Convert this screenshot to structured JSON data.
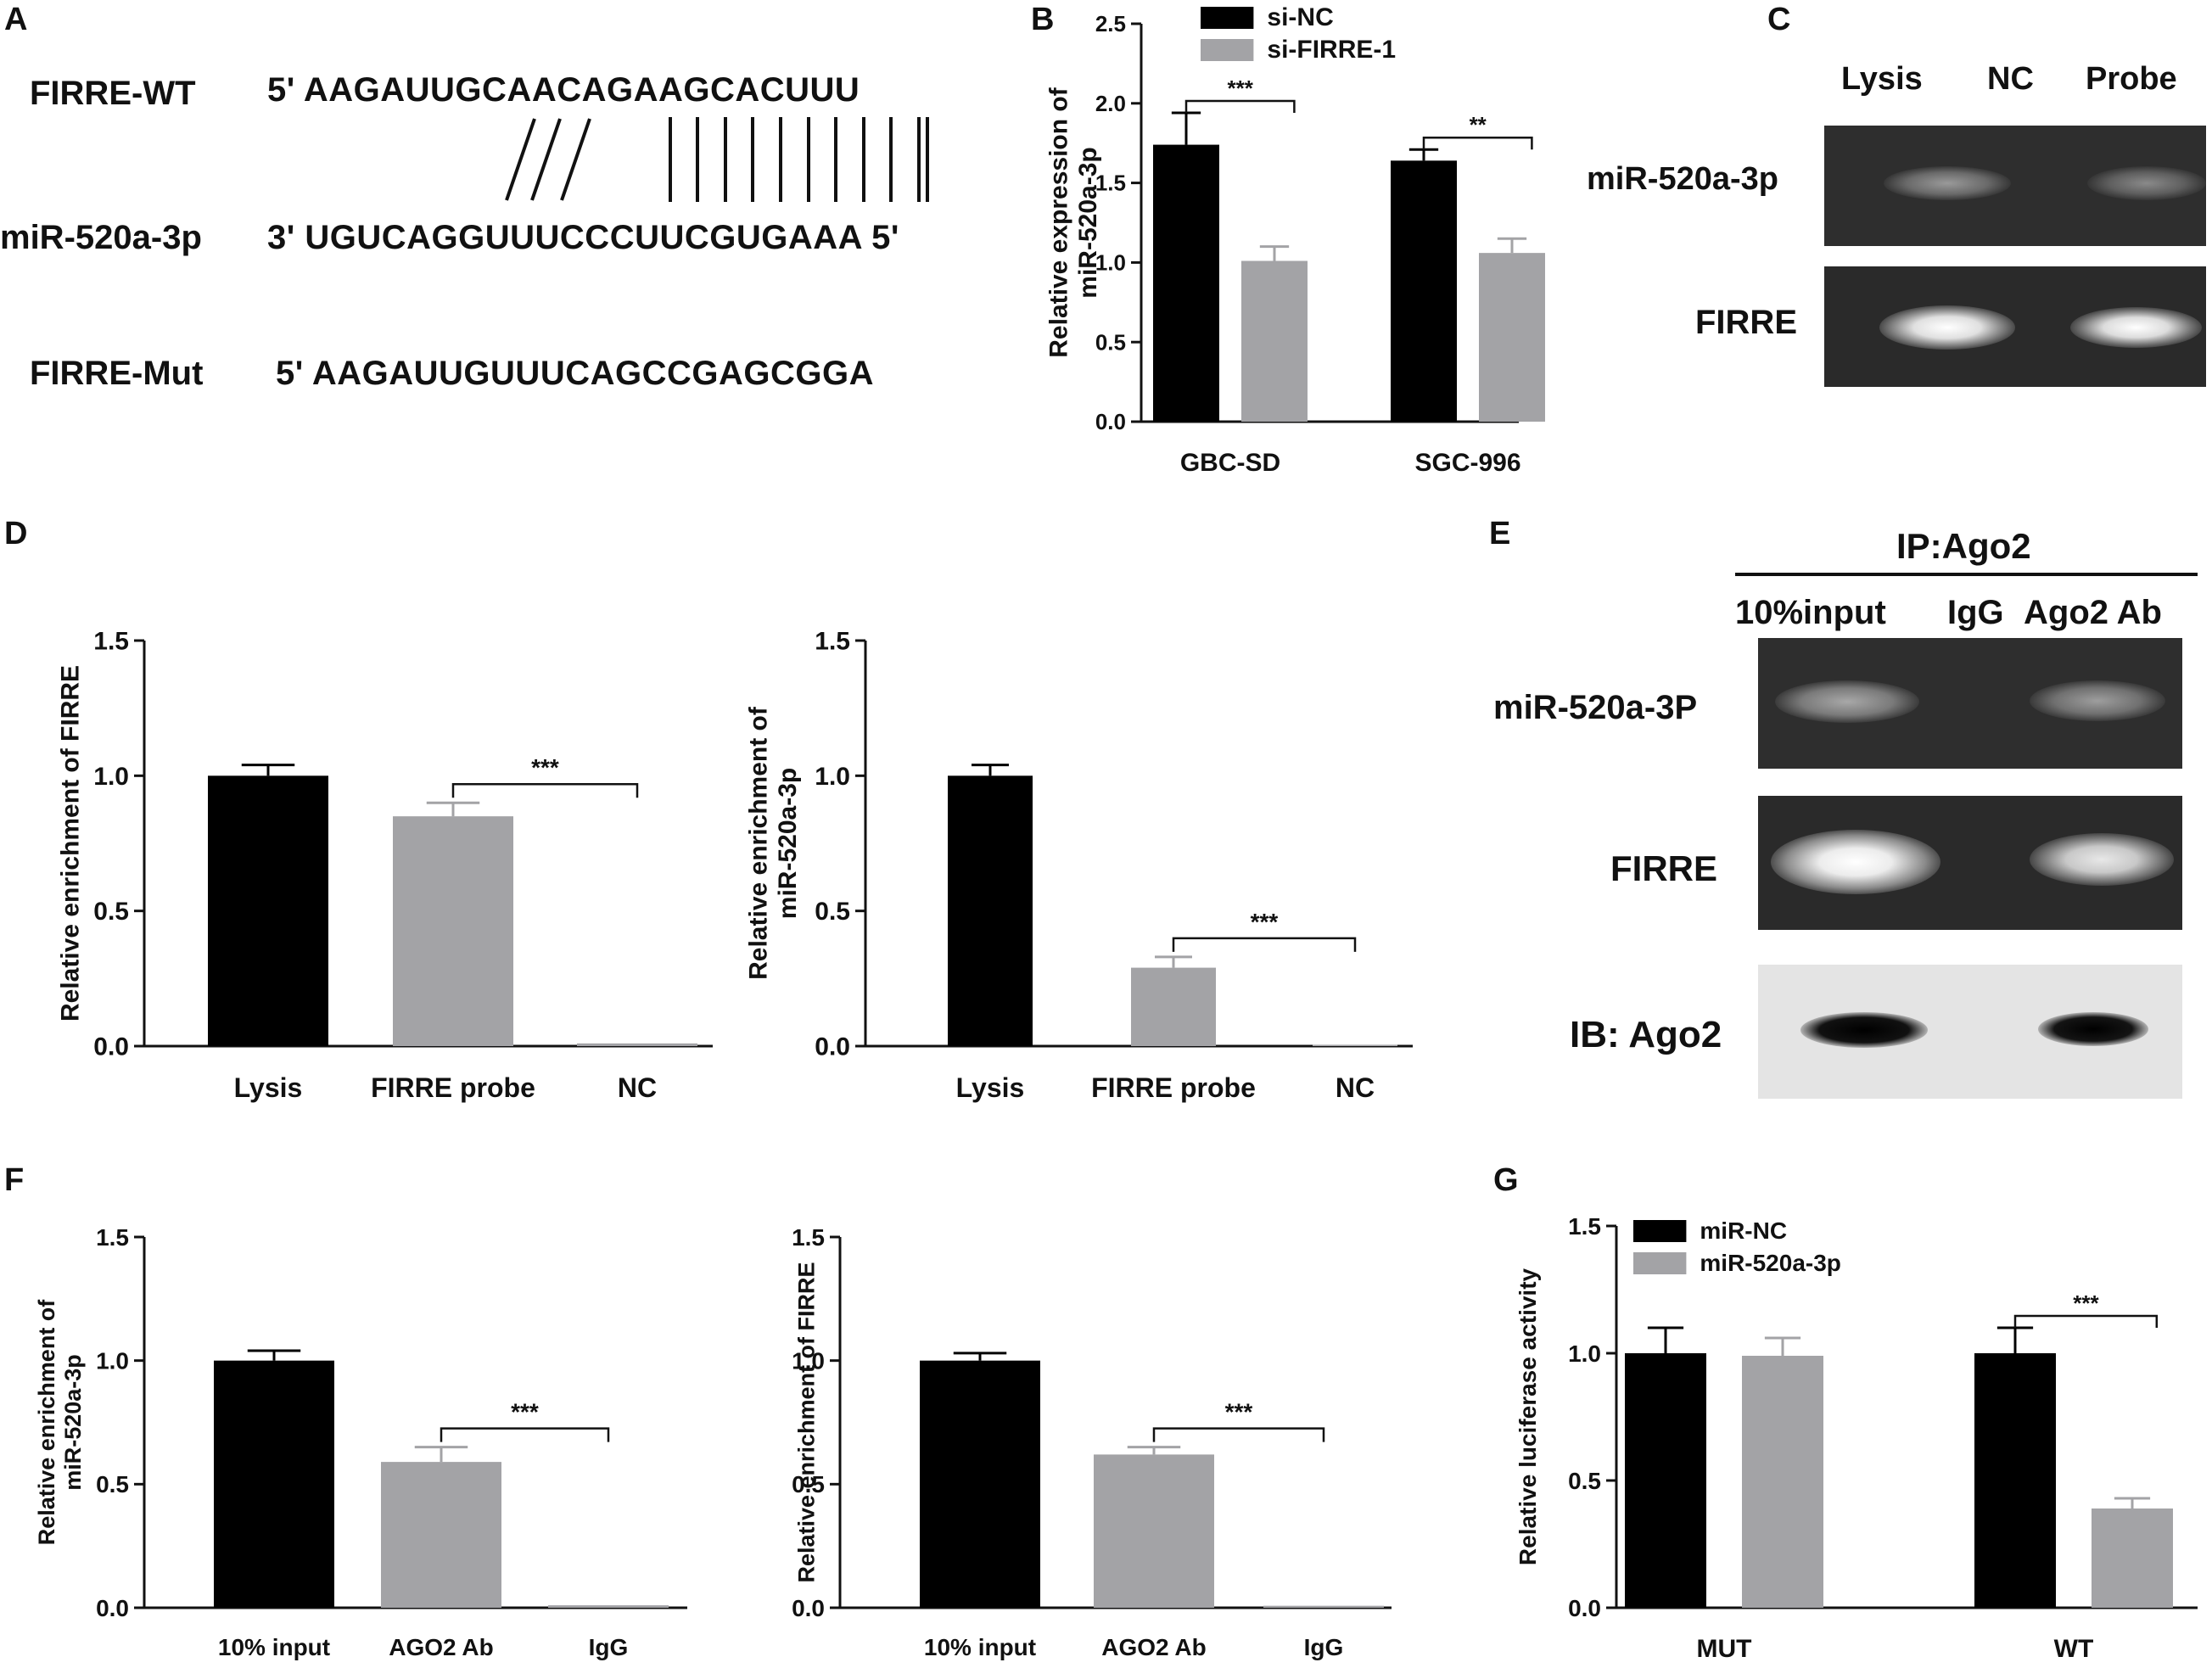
{
  "panels": {
    "A": {
      "letter": "A",
      "rows": [
        {
          "name": "FIRRE-WT",
          "seq": "5' AAGAUUGCAACAGAAGCACUUU"
        },
        {
          "name": "miR-520a-3p",
          "seq": "3' UGUCAGGUUUCCCUUCGUGAAA 5'"
        },
        {
          "name": "FIRRE-Mut",
          "seq": "5' AAGAUUGUUUCAGCCGAGCGGA"
        }
      ]
    },
    "B": {
      "letter": "B"
    },
    "C": {
      "letter": "C",
      "lanes": [
        "Lysis",
        "NC",
        "Probe"
      ],
      "rows": [
        "miR-520a-3p",
        "FIRRE"
      ]
    },
    "D": {
      "letter": "D"
    },
    "E": {
      "letter": "E",
      "header": "IP:Ago2",
      "lanes": [
        "10%input",
        "IgG",
        "Ago2 Ab"
      ],
      "rows": [
        "miR-520a-3P",
        "FIRRE",
        "IB: Ago2"
      ]
    },
    "F": {
      "letter": "F"
    },
    "G": {
      "letter": "G"
    }
  },
  "colors": {
    "black_bar": "#000000",
    "gray_bar": "#a3a3a6",
    "text": "#111111",
    "gel_dark": "#2a2a2a",
    "band_light": "#f2f2f2",
    "blot_bg": "#e6e6e6"
  },
  "chart_data": [
    {
      "id": "B",
      "type": "bar",
      "categories": [
        "GBC-SD",
        "SGC-996"
      ],
      "series": [
        {
          "name": "si-NC",
          "values": [
            1.74,
            1.64
          ],
          "errors": [
            0.2,
            0.07
          ],
          "color": "#000000"
        },
        {
          "name": "si-FIRRE-1",
          "values": [
            1.01,
            1.06
          ],
          "errors": [
            0.09,
            0.09
          ],
          "color": "#a3a3a6"
        }
      ],
      "ylabel": "Relative  expression of\nmiR-520a-3p",
      "xlabel": "",
      "ylim": [
        0,
        2.5
      ],
      "yticks": [
        "0.0",
        "0.5",
        "1.0",
        "1.5",
        "2.0",
        "2.5"
      ],
      "legend_position": "top-left",
      "significance": [
        {
          "category": "GBC-SD",
          "label": "***"
        },
        {
          "category": "SGC-996",
          "label": "**"
        }
      ]
    },
    {
      "id": "D1",
      "type": "bar",
      "categories": [
        "Lysis",
        "FIRRE probe",
        "NC"
      ],
      "values": [
        1.0,
        0.85,
        0.01
      ],
      "errors": [
        0.04,
        0.05,
        0.0
      ],
      "colors": [
        "#000000",
        "#a3a3a6",
        "#a3a3a6"
      ],
      "ylabel": "Relative enrichment  of FIRRE",
      "xlabel": "",
      "ylim": [
        0,
        1.5
      ],
      "yticks": [
        "0.0",
        "0.5",
        "1.0",
        "1.5"
      ],
      "significance": [
        {
          "from": "FIRRE probe",
          "to": "NC",
          "label": "***"
        }
      ]
    },
    {
      "id": "D2",
      "type": "bar",
      "categories": [
        "Lysis",
        "FIRRE probe",
        "NC"
      ],
      "values": [
        1.0,
        0.29,
        0.005
      ],
      "errors": [
        0.04,
        0.04,
        0.0
      ],
      "colors": [
        "#000000",
        "#a3a3a6",
        "#a3a3a6"
      ],
      "ylabel": "Relative enrichment  of\nmiR-520a-3p",
      "xlabel": "",
      "ylim": [
        0,
        1.5
      ],
      "yticks": [
        "0.0",
        "0.5",
        "1.0",
        "1.5"
      ],
      "significance": [
        {
          "from": "FIRRE probe",
          "to": "NC",
          "label": "***"
        }
      ]
    },
    {
      "id": "F1",
      "type": "bar",
      "categories": [
        "10% input",
        "AGO2 Ab",
        "IgG"
      ],
      "values": [
        1.0,
        0.59,
        0.01
      ],
      "errors": [
        0.04,
        0.06,
        0.0
      ],
      "colors": [
        "#000000",
        "#a3a3a6",
        "#a3a3a6"
      ],
      "ylabel": "Relative enrichment  of\nmiR-520a-3p",
      "xlabel": "",
      "ylim": [
        0,
        1.5
      ],
      "yticks": [
        "0.0",
        "0.5",
        "1.0",
        "1.5"
      ],
      "significance": [
        {
          "from": "AGO2 Ab",
          "to": "IgG",
          "label": "***"
        }
      ]
    },
    {
      "id": "F2",
      "type": "bar",
      "categories": [
        "10% input",
        "AGO2 Ab",
        "IgG"
      ],
      "values": [
        1.0,
        0.62,
        0.008
      ],
      "errors": [
        0.03,
        0.03,
        0.0
      ],
      "colors": [
        "#000000",
        "#a3a3a6",
        "#a3a3a6"
      ],
      "ylabel": "Relative enrichment  of FIRRE",
      "xlabel": "",
      "ylim": [
        0,
        1.5
      ],
      "yticks": [
        "0.0",
        "0.5",
        "1.0",
        "1.5"
      ],
      "significance": [
        {
          "from": "AGO2 Ab",
          "to": "IgG",
          "label": "***"
        }
      ]
    },
    {
      "id": "G",
      "type": "bar",
      "categories": [
        "MUT",
        "WT"
      ],
      "series": [
        {
          "name": "miR-NC",
          "values": [
            1.0,
            1.0
          ],
          "errors": [
            0.1,
            0.1
          ],
          "color": "#000000"
        },
        {
          "name": "miR-520a-3p",
          "values": [
            0.99,
            0.39
          ],
          "errors": [
            0.07,
            0.04
          ],
          "color": "#a3a3a6"
        }
      ],
      "ylabel": "Relative luciferase activity",
      "xlabel": "",
      "ylim": [
        0,
        1.5
      ],
      "yticks": [
        "0.0",
        "0.5",
        "1.0",
        "1.5"
      ],
      "legend_position": "top-left",
      "significance": [
        {
          "category": "WT",
          "label": "***"
        }
      ]
    }
  ]
}
